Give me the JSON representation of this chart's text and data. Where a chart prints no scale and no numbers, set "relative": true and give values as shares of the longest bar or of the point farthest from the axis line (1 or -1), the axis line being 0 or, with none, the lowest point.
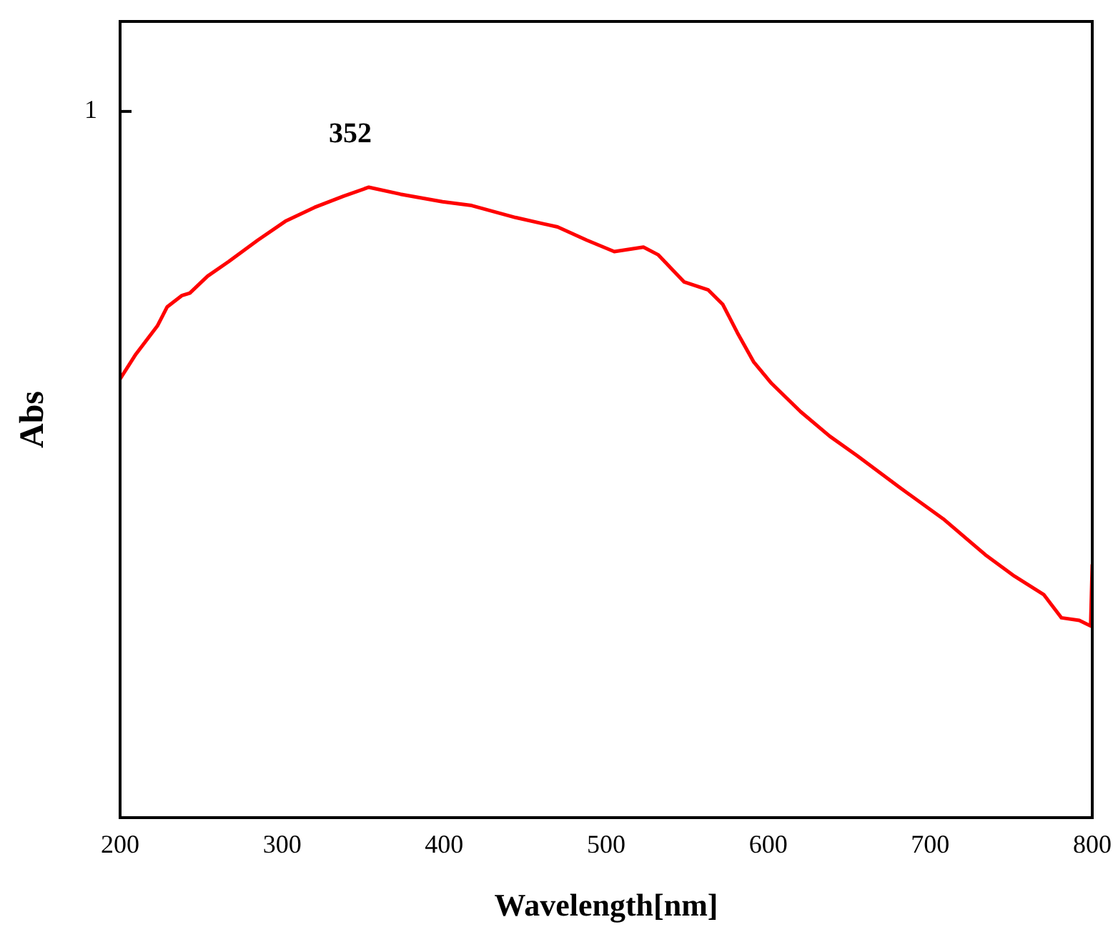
{
  "chart_data": {
    "type": "line",
    "relative": true,
    "xlabel": "Wavelength[nm]",
    "ylabel": "Abs",
    "xlim": [
      200,
      800
    ],
    "xticks": [
      200,
      300,
      400,
      500,
      600,
      700,
      800
    ],
    "grid": false,
    "legend": false,
    "marker": "none",
    "line_style": "solid",
    "annotations": [
      "352",
      "1"
    ],
    "series": [
      {
        "color": "#ff0000",
        "x": [
          200,
          209.7,
          223,
          229,
          238,
          243,
          254,
          267,
          285,
          302,
          320,
          338,
          353.5,
          373,
          399,
          417,
          444,
          470,
          488,
          505,
          523,
          532,
          548,
          563,
          572,
          581,
          591,
          602,
          620,
          638,
          655,
          681,
          708,
          734,
          752,
          770,
          781,
          792,
          799,
          800
        ],
        "values": [
          0.696,
          0.735,
          0.78,
          0.81,
          0.828,
          0.832,
          0.859,
          0.882,
          0.916,
          0.946,
          0.968,
          0.986,
          1,
          0.989,
          0.977,
          0.971,
          0.952,
          0.937,
          0.916,
          0.898,
          0.905,
          0.893,
          0.85,
          0.837,
          0.814,
          0.769,
          0.723,
          0.689,
          0.644,
          0.605,
          0.574,
          0.524,
          0.474,
          0.417,
          0.383,
          0.354,
          0.317,
          0.313,
          0.304,
          0.401
        ]
      }
    ]
  }
}
